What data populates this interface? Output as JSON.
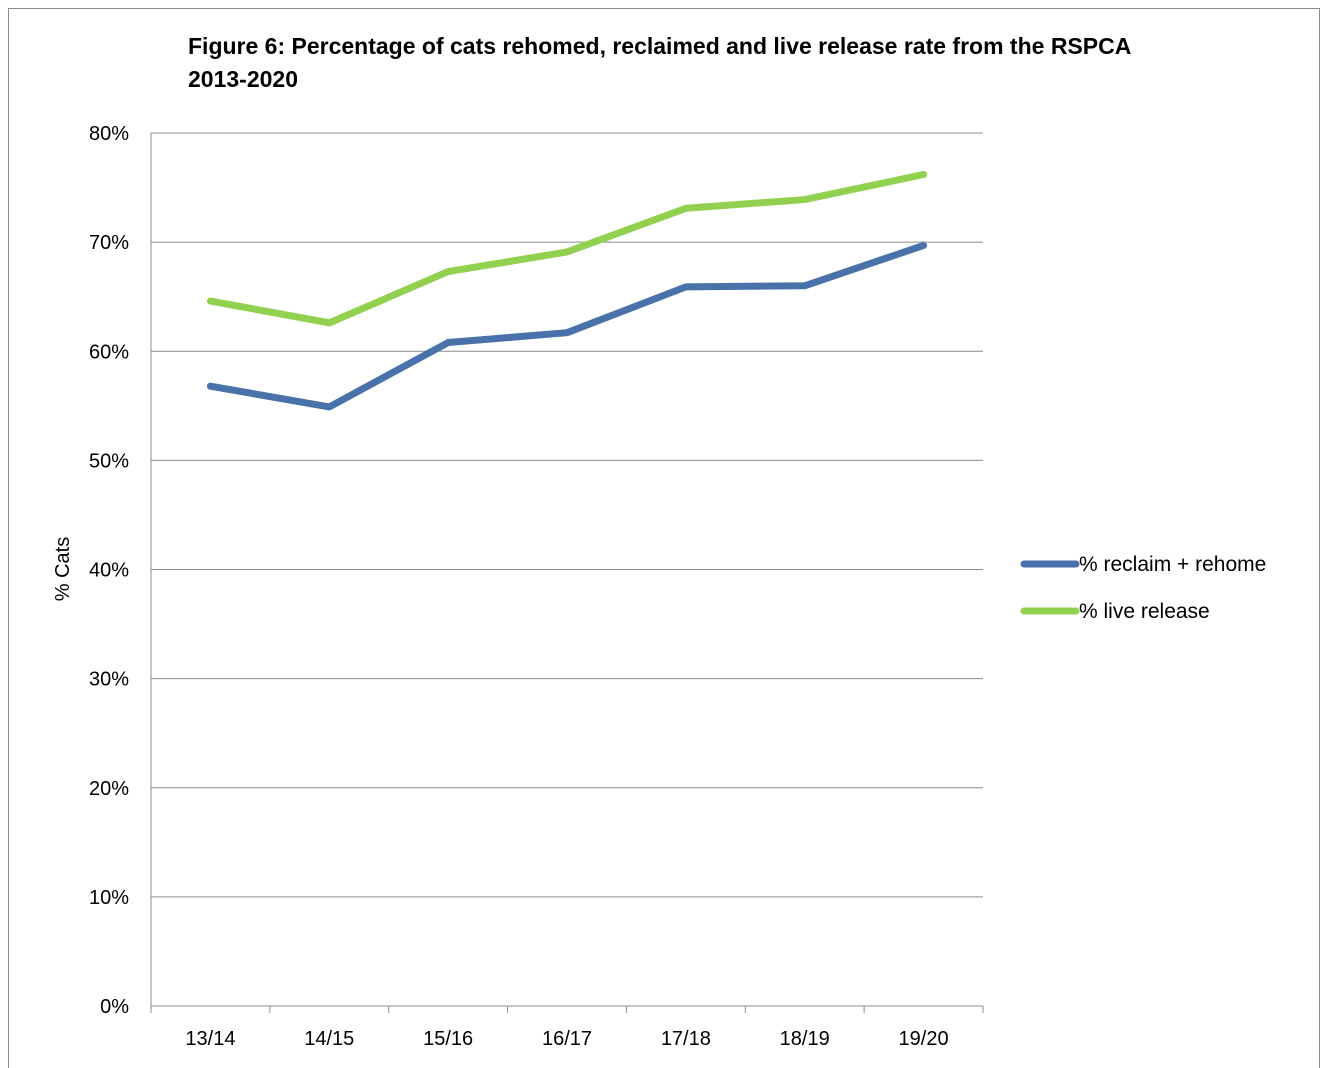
{
  "chart_data": {
    "type": "line",
    "title": "Figure 6: Percentage of cats rehomed, reclaimed and live release rate from the RSPCA 2013-2020",
    "xlabel": "",
    "ylabel": "% Cats",
    "categories": [
      "13/14",
      "14/15",
      "15/16",
      "16/17",
      "17/18",
      "18/19",
      "19/20"
    ],
    "ylim": [
      0,
      80
    ],
    "yticks": [
      "0%",
      "10%",
      "20%",
      "30%",
      "40%",
      "50%",
      "60%",
      "70%",
      "80%"
    ],
    "grid": true,
    "legend": "right",
    "series": [
      {
        "name": "% reclaim + rehome",
        "color": "#4a72aa",
        "values": [
          56.8,
          54.9,
          60.8,
          61.7,
          65.9,
          66.0,
          69.7
        ]
      },
      {
        "name": "% live release",
        "color": "#92d050",
        "values": [
          64.6,
          62.6,
          67.3,
          69.1,
          73.1,
          73.9,
          76.2
        ]
      }
    ]
  }
}
